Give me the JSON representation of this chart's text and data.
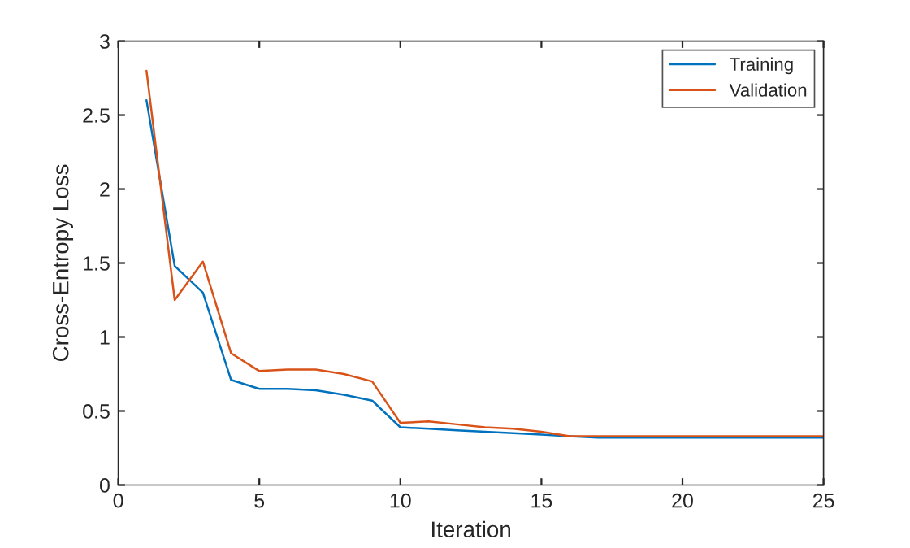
{
  "chart_data": {
    "type": "line",
    "xlabel": "Iteration",
    "ylabel": "Cross-Entropy Loss",
    "x": [
      1,
      2,
      3,
      4,
      5,
      6,
      7,
      8,
      9,
      10,
      11,
      12,
      13,
      14,
      15,
      16,
      17,
      18,
      19,
      20,
      21,
      22,
      23,
      24,
      25
    ],
    "series": [
      {
        "name": "Training",
        "color": "#0072bd",
        "values": [
          2.6,
          1.48,
          1.3,
          0.71,
          0.65,
          0.65,
          0.64,
          0.61,
          0.57,
          0.39,
          0.38,
          0.37,
          0.36,
          0.35,
          0.34,
          0.33,
          0.32,
          0.32,
          0.32,
          0.32,
          0.32,
          0.32,
          0.32,
          0.32,
          0.32
        ]
      },
      {
        "name": "Validation",
        "color": "#d95319",
        "values": [
          2.8,
          1.25,
          1.51,
          0.89,
          0.77,
          0.78,
          0.78,
          0.75,
          0.7,
          0.42,
          0.43,
          0.41,
          0.39,
          0.38,
          0.36,
          0.33,
          0.33,
          0.33,
          0.33,
          0.33,
          0.33,
          0.33,
          0.33,
          0.33,
          0.33
        ]
      }
    ],
    "xlim": [
      0,
      25
    ],
    "xticks": [
      0,
      5,
      10,
      15,
      20,
      25
    ],
    "ylim": [
      0,
      3
    ],
    "yticks": [
      0,
      0.5,
      1,
      1.5,
      2,
      2.5,
      3
    ],
    "grid": false,
    "legend": "top right",
    "marker": "none",
    "line_style": "solid"
  }
}
